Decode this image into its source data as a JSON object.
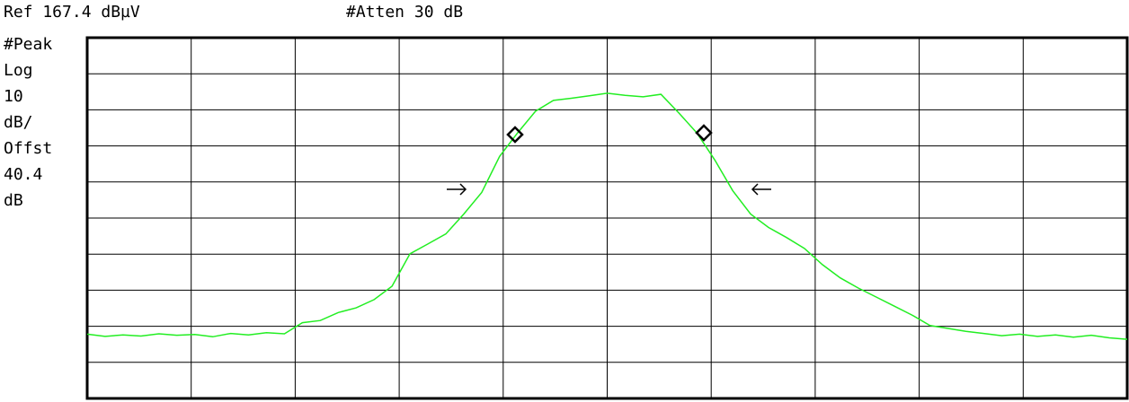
{
  "chart_data": {
    "type": "line",
    "header": [
      "Ref 167.4 dBµV",
      "#Atten 30 dB"
    ],
    "side_labels": [
      "#Peak",
      "Log",
      "10",
      "dB/",
      "Offst",
      "40.4",
      "dB"
    ],
    "ylim": [
      67.4,
      167.4
    ],
    "color": "#22ee22",
    "values": [
      85.2,
      84.6,
      85.0,
      84.7,
      85.3,
      84.9,
      85.1,
      84.5,
      85.4,
      85.0,
      85.6,
      85.3,
      88.4,
      89.0,
      91.2,
      92.5,
      94.8,
      98.5,
      107.5,
      110.2,
      113.0,
      118.5,
      124.5,
      134.5,
      141.0,
      147.0,
      150.0,
      150.6,
      151.3,
      152.0,
      151.4,
      151.0,
      151.7,
      146.5,
      141.0,
      133.5,
      125.0,
      118.5,
      114.8,
      112.0,
      109.0,
      104.5,
      100.8,
      98.0,
      95.5,
      93.0,
      90.5,
      87.6,
      86.8,
      86.0,
      85.4,
      84.8,
      85.2,
      84.6,
      85.0,
      84.4,
      84.9,
      84.2,
      83.8
    ]
  }
}
